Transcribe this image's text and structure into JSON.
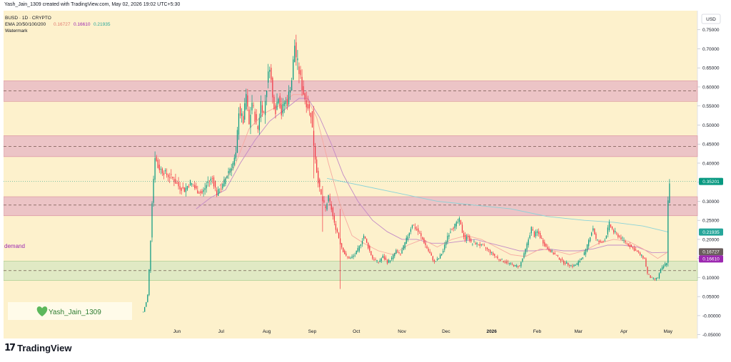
{
  "header": {
    "attribution": "Yash_Jain_1309 created with TradingView.com, May 02, 2026 19:02 UTC+5:30"
  },
  "legend": {
    "symbol": "BUSD · 1D · CRYPTO",
    "ema_label": "EMA 20/50/100/200",
    "ema20": "0.16727",
    "ema50": "0.16610",
    "ema200": "0.21935",
    "watermark": "Watermark"
  },
  "currency": "USD",
  "zone_label": "demand",
  "watermark_badge": "Yash_Jain_1309",
  "brand": "TradingView",
  "colors": {
    "chart_bg": "#fdf1cc",
    "zone_red": "#e9bcc4",
    "zone_green": "#dbe8c2",
    "candle_up": "#089981",
    "candle_down": "#f23645",
    "ema20": "#f7a9a0",
    "ema50": "#c38bc6",
    "ema100": "#c0b2e6",
    "ema200": "#8bd3d8",
    "last_price": "#089981",
    "demand_text": "#9c27b0"
  },
  "chart_data": {
    "type": "candlestick",
    "ylim": [
      -0.06,
      0.8
    ],
    "y_ticks": [
      "0.75000",
      "0.70000",
      "0.65000",
      "0.60000",
      "0.55000",
      "0.50000",
      "0.45000",
      "0.40000",
      "0.35000",
      "0.30000",
      "0.25000",
      "0.20000",
      "0.15000",
      "0.10000",
      "0.05000",
      "-0.00000",
      "-0.05000"
    ],
    "y_tick_values": [
      0.75,
      0.7,
      0.65,
      0.6,
      0.55,
      0.5,
      0.45,
      0.4,
      0.35,
      0.3,
      0.25,
      0.2,
      0.15,
      0.1,
      0.05,
      0.0,
      -0.05
    ],
    "x_labels": [
      "Jun",
      "Jul",
      "Aug",
      "Sep",
      "Oct",
      "Nov",
      "Dec",
      "2026",
      "Feb",
      "Mar",
      "Apr",
      "May"
    ],
    "x_label_days": [
      23,
      53,
      84,
      115,
      145,
      176,
      206,
      237,
      268,
      296,
      327,
      357
    ],
    "x_range_days": [
      -95,
      377
    ],
    "zones": [
      {
        "type": "resistance",
        "low": 0.562,
        "high": 0.616,
        "mid": 0.59
      },
      {
        "type": "resistance",
        "low": 0.417,
        "high": 0.472,
        "mid": 0.444
      },
      {
        "type": "resistance",
        "low": 0.262,
        "high": 0.312,
        "mid": 0.29
      },
      {
        "type": "demand",
        "low": 0.092,
        "high": 0.143,
        "mid": 0.118
      }
    ],
    "price_labels": [
      {
        "value": 0.35201,
        "text": "0.35201",
        "color": "#089981"
      },
      {
        "value": 0.21935,
        "text": "0.21935",
        "color": "#26a69a"
      },
      {
        "value": 0.16727,
        "text": "0.16727",
        "color": "#6a5d5d"
      },
      {
        "value": 0.1661,
        "text": "0.16610",
        "color": "#9c27b0"
      }
    ],
    "last_price": 0.35201,
    "price_anchors": [
      [
        0,
        0.01
      ],
      [
        2,
        0.035
      ],
      [
        3,
        0.055
      ],
      [
        4,
        0.12
      ],
      [
        5,
        0.2
      ],
      [
        6,
        0.3
      ],
      [
        7,
        0.36
      ],
      [
        8,
        0.42
      ],
      [
        10,
        0.39
      ],
      [
        13,
        0.38
      ],
      [
        16,
        0.37
      ],
      [
        20,
        0.36
      ],
      [
        24,
        0.34
      ],
      [
        28,
        0.33
      ],
      [
        32,
        0.35
      ],
      [
        36,
        0.33
      ],
      [
        40,
        0.32
      ],
      [
        44,
        0.35
      ],
      [
        47,
        0.36
      ],
      [
        50,
        0.32
      ],
      [
        54,
        0.34
      ],
      [
        58,
        0.38
      ],
      [
        61,
        0.4
      ],
      [
        63,
        0.42
      ],
      [
        65,
        0.54
      ],
      [
        68,
        0.51
      ],
      [
        70,
        0.58
      ],
      [
        72,
        0.5
      ],
      [
        74,
        0.56
      ],
      [
        76,
        0.52
      ],
      [
        78,
        0.49
      ],
      [
        80,
        0.56
      ],
      [
        82,
        0.53
      ],
      [
        84,
        0.6
      ],
      [
        86,
        0.66
      ],
      [
        88,
        0.57
      ],
      [
        90,
        0.54
      ],
      [
        92,
        0.58
      ],
      [
        94,
        0.53
      ],
      [
        96,
        0.56
      ],
      [
        98,
        0.56
      ],
      [
        101,
        0.62
      ],
      [
        103,
        0.71
      ],
      [
        104,
        0.68
      ],
      [
        106,
        0.64
      ],
      [
        108,
        0.6
      ],
      [
        110,
        0.57
      ],
      [
        112,
        0.55
      ],
      [
        114,
        0.53
      ],
      [
        116,
        0.45
      ],
      [
        118,
        0.38
      ],
      [
        120,
        0.33
      ],
      [
        122,
        0.3
      ],
      [
        124,
        0.28
      ],
      [
        126,
        0.31
      ],
      [
        128,
        0.28
      ],
      [
        130,
        0.24
      ],
      [
        132,
        0.22
      ],
      [
        134,
        0.19
      ],
      [
        136,
        0.17
      ],
      [
        138,
        0.155
      ],
      [
        141,
        0.15
      ],
      [
        144,
        0.16
      ],
      [
        147,
        0.18
      ],
      [
        150,
        0.21
      ],
      [
        153,
        0.18
      ],
      [
        156,
        0.15
      ],
      [
        160,
        0.14
      ],
      [
        163,
        0.155
      ],
      [
        166,
        0.14
      ],
      [
        169,
        0.15
      ],
      [
        172,
        0.17
      ],
      [
        175,
        0.16
      ],
      [
        178,
        0.19
      ],
      [
        181,
        0.22
      ],
      [
        183,
        0.24
      ],
      [
        185,
        0.23
      ],
      [
        187,
        0.22
      ],
      [
        190,
        0.2
      ],
      [
        194,
        0.17
      ],
      [
        198,
        0.14
      ],
      [
        201,
        0.15
      ],
      [
        204,
        0.17
      ],
      [
        207,
        0.21
      ],
      [
        210,
        0.23
      ],
      [
        213,
        0.24
      ],
      [
        215,
        0.25
      ],
      [
        217,
        0.22
      ],
      [
        219,
        0.2
      ],
      [
        221,
        0.21
      ],
      [
        223,
        0.19
      ],
      [
        226,
        0.19
      ],
      [
        229,
        0.185
      ],
      [
        232,
        0.18
      ],
      [
        235,
        0.17
      ],
      [
        238,
        0.16
      ],
      [
        241,
        0.15
      ],
      [
        244,
        0.145
      ],
      [
        247,
        0.14
      ],
      [
        250,
        0.135
      ],
      [
        253,
        0.13
      ],
      [
        256,
        0.13
      ],
      [
        259,
        0.16
      ],
      [
        262,
        0.2
      ],
      [
        264,
        0.23
      ],
      [
        266,
        0.21
      ],
      [
        268,
        0.22
      ],
      [
        271,
        0.2
      ],
      [
        274,
        0.18
      ],
      [
        277,
        0.17
      ],
      [
        280,
        0.16
      ],
      [
        283,
        0.15
      ],
      [
        286,
        0.14
      ],
      [
        289,
        0.135
      ],
      [
        292,
        0.13
      ],
      [
        295,
        0.135
      ],
      [
        298,
        0.15
      ],
      [
        301,
        0.17
      ],
      [
        304,
        0.21
      ],
      [
        306,
        0.23
      ],
      [
        308,
        0.2
      ],
      [
        311,
        0.19
      ],
      [
        314,
        0.2
      ],
      [
        317,
        0.24
      ],
      [
        320,
        0.22
      ],
      [
        323,
        0.21
      ],
      [
        326,
        0.2
      ],
      [
        329,
        0.19
      ],
      [
        332,
        0.18
      ],
      [
        335,
        0.17
      ],
      [
        338,
        0.16
      ],
      [
        341,
        0.15
      ],
      [
        343,
        0.11
      ],
      [
        345,
        0.1
      ],
      [
        348,
        0.095
      ],
      [
        350,
        0.1
      ],
      [
        352,
        0.12
      ],
      [
        354,
        0.13
      ],
      [
        356,
        0.14
      ],
      [
        357,
        0.3
      ],
      [
        358,
        0.35201
      ]
    ],
    "spike_candles": [
      {
        "day": 122,
        "high": 0.34,
        "low": 0.22
      },
      {
        "day": 134,
        "high": 0.28,
        "low": 0.07
      },
      {
        "day": 116,
        "high": 0.55,
        "low": 0.36
      }
    ],
    "ema20_points": [
      [
        52,
        0.34
      ],
      [
        62,
        0.39
      ],
      [
        72,
        0.49
      ],
      [
        82,
        0.53
      ],
      [
        92,
        0.55
      ],
      [
        102,
        0.58
      ],
      [
        110,
        0.58
      ],
      [
        118,
        0.52
      ],
      [
        126,
        0.4
      ],
      [
        134,
        0.29
      ],
      [
        142,
        0.21
      ],
      [
        150,
        0.19
      ],
      [
        160,
        0.17
      ],
      [
        170,
        0.16
      ],
      [
        180,
        0.185
      ],
      [
        190,
        0.2
      ],
      [
        200,
        0.18
      ],
      [
        210,
        0.2
      ],
      [
        220,
        0.21
      ],
      [
        230,
        0.2
      ],
      [
        240,
        0.18
      ],
      [
        250,
        0.16
      ],
      [
        260,
        0.155
      ],
      [
        270,
        0.175
      ],
      [
        280,
        0.17
      ],
      [
        290,
        0.16
      ],
      [
        300,
        0.17
      ],
      [
        310,
        0.19
      ],
      [
        320,
        0.2
      ],
      [
        330,
        0.195
      ],
      [
        340,
        0.175
      ],
      [
        350,
        0.15
      ],
      [
        357,
        0.16727
      ]
    ],
    "ema50_points": [
      [
        36,
        0.28
      ],
      [
        46,
        0.31
      ],
      [
        56,
        0.33
      ],
      [
        66,
        0.4
      ],
      [
        76,
        0.46
      ],
      [
        86,
        0.51
      ],
      [
        96,
        0.54
      ],
      [
        106,
        0.57
      ],
      [
        112,
        0.57
      ],
      [
        120,
        0.52
      ],
      [
        128,
        0.45
      ],
      [
        136,
        0.37
      ],
      [
        146,
        0.3
      ],
      [
        156,
        0.25
      ],
      [
        166,
        0.22
      ],
      [
        176,
        0.2
      ],
      [
        186,
        0.2
      ],
      [
        196,
        0.19
      ],
      [
        206,
        0.19
      ],
      [
        216,
        0.195
      ],
      [
        226,
        0.2
      ],
      [
        236,
        0.19
      ],
      [
        246,
        0.18
      ],
      [
        256,
        0.17
      ],
      [
        266,
        0.17
      ],
      [
        276,
        0.175
      ],
      [
        286,
        0.17
      ],
      [
        296,
        0.17
      ],
      [
        306,
        0.175
      ],
      [
        316,
        0.185
      ],
      [
        326,
        0.185
      ],
      [
        336,
        0.18
      ],
      [
        346,
        0.165
      ],
      [
        357,
        0.1661
      ]
    ],
    "ema200_points": [
      [
        125,
        0.36
      ],
      [
        150,
        0.34
      ],
      [
        175,
        0.32
      ],
      [
        200,
        0.3
      ],
      [
        225,
        0.29
      ],
      [
        250,
        0.28
      ],
      [
        275,
        0.26
      ],
      [
        300,
        0.25
      ],
      [
        320,
        0.245
      ],
      [
        340,
        0.235
      ],
      [
        357,
        0.21935
      ]
    ]
  }
}
